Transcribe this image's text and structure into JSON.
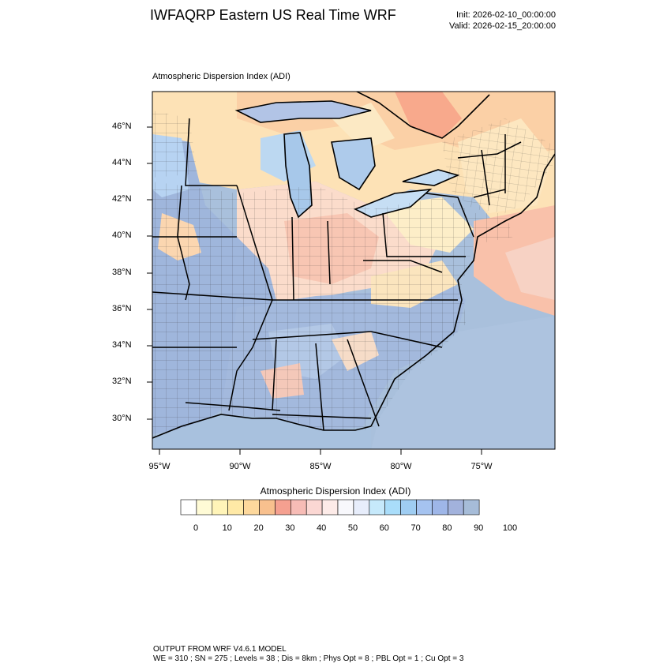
{
  "header": {
    "title": "IWFAQRP Eastern US Real Time WRF",
    "init": "Init: 2026-02-10_00:00:00",
    "valid": "Valid: 2026-02-15_20:00:00"
  },
  "map": {
    "subtitle": "Atmospheric Dispersion Index   (ADI)",
    "lat_labels": [
      "46°N",
      "44°N",
      "42°N",
      "40°N",
      "38°N",
      "36°N",
      "34°N",
      "32°N",
      "30°N"
    ],
    "lon_labels": [
      "95°W",
      "90°W",
      "85°W",
      "80°W",
      "75°W"
    ]
  },
  "colorbar": {
    "title": "Atmospheric Dispersion Index  (ADI)",
    "tick_labels": [
      "0",
      "10",
      "20",
      "30",
      "40",
      "50",
      "60",
      "70",
      "80",
      "90",
      "100"
    ],
    "colors": [
      "#ffffff",
      "#fffbd6",
      "#fff4b8",
      "#ffe9a6",
      "#fdd89c",
      "#f8c08e",
      "#f5a090",
      "#f7bcb6",
      "#fbd7d3",
      "#fdebe8",
      "#f8f8fc",
      "#e7edfb",
      "#c6e9fb",
      "#a9ddfa",
      "#9fcdf2",
      "#a5c3f0",
      "#9eb6e8",
      "#a2b2dc",
      "#a6bcd8"
    ]
  },
  "footer": {
    "line1": "OUTPUT FROM WRF V4.6.1 MODEL",
    "line2": "WE = 310 ; SN = 275 ; Levels = 38 ; Dis = 8km ; Phys Opt = 8 ; PBL Opt = 1 ; Cu Opt = 3"
  }
}
